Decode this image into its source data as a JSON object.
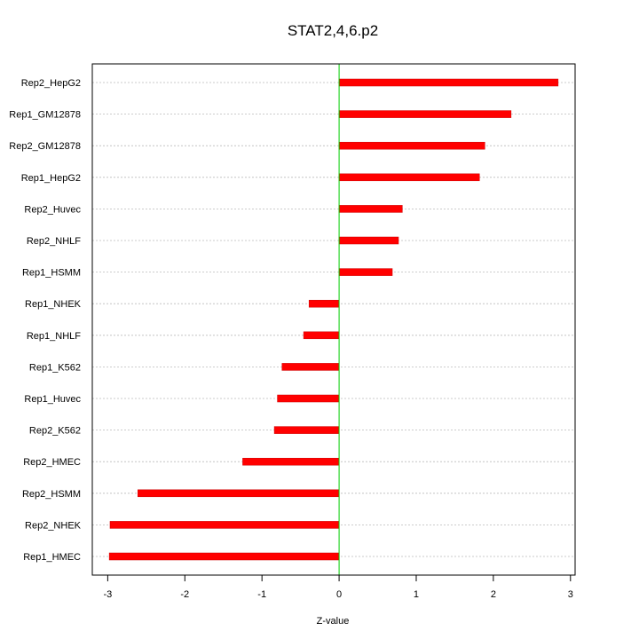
{
  "chart_data": {
    "type": "bar",
    "orientation": "horizontal",
    "title": "STAT2,4,6.p2",
    "xlabel": "Z-value",
    "ylabel": "",
    "xlim": [
      -3.2,
      3.06
    ],
    "xticks": [
      -3,
      -2,
      -1,
      0,
      1,
      2,
      3
    ],
    "grid": "horizontal dotted",
    "zero_line": true,
    "colors": {
      "bar": "#ff0000",
      "bar_edge": "#cc0000",
      "zero_line": "#00cc00",
      "grid": "#bbbbbb"
    },
    "categories": [
      "Rep2_HepG2",
      "Rep1_GM12878",
      "Rep2_GM12878",
      "Rep1_HepG2",
      "Rep2_Huvec",
      "Rep2_NHLF",
      "Rep1_HSMM",
      "Rep1_NHEK",
      "Rep1_NHLF",
      "Rep1_K562",
      "Rep1_Huvec",
      "Rep2_K562",
      "Rep2_HMEC",
      "Rep2_HSMM",
      "Rep2_NHEK",
      "Rep1_HMEC"
    ],
    "values": [
      2.84,
      2.23,
      1.89,
      1.82,
      0.82,
      0.77,
      0.69,
      -0.39,
      -0.46,
      -0.74,
      -0.8,
      -0.84,
      -1.25,
      -2.61,
      -2.97,
      -2.98
    ]
  }
}
